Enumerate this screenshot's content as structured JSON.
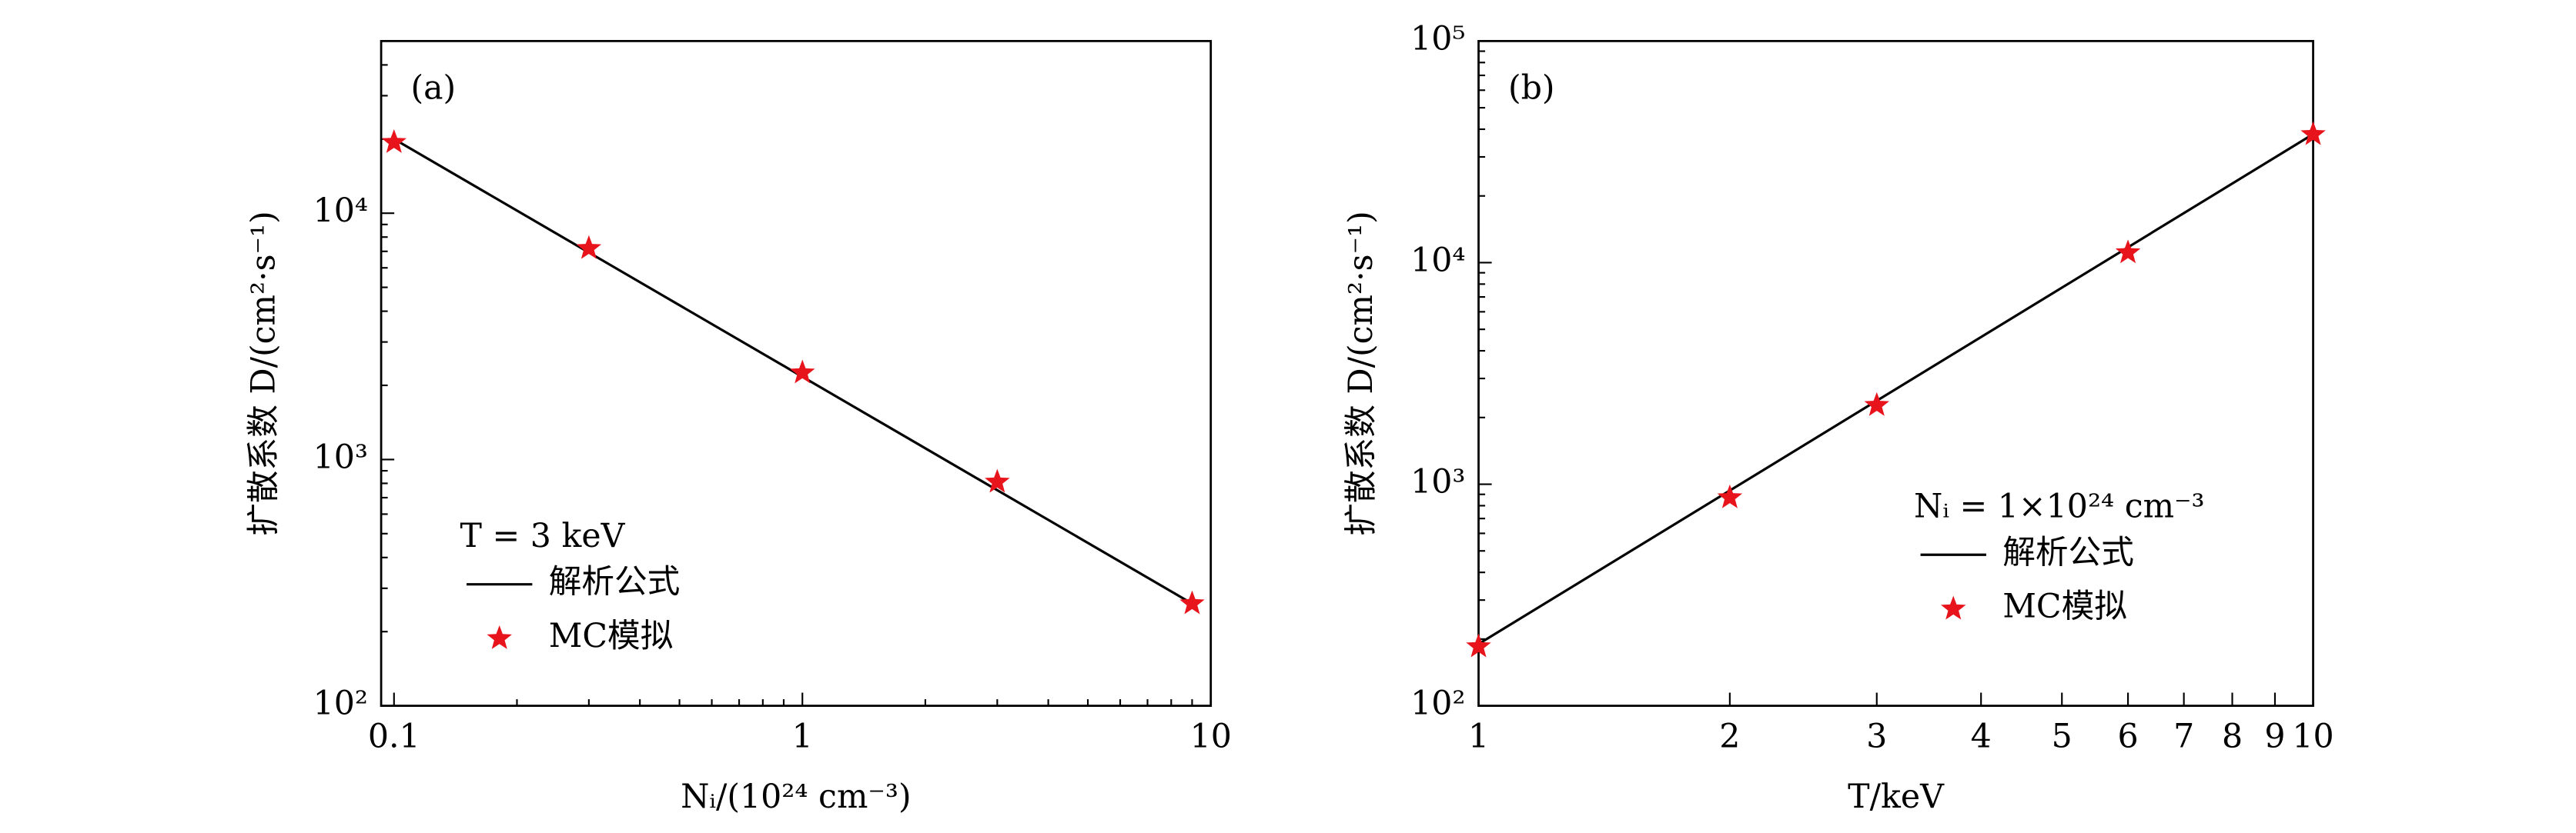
{
  "chart_data": [
    {
      "type": "line",
      "panel_label": "(a)",
      "annotation": "T = 3 keV",
      "x_label": "Nᵢ/(10²⁴ cm⁻³)",
      "y_label": "扩散系数 D/(cm²·s⁻¹)",
      "xscale": "log",
      "yscale": "log",
      "legend": "lower left",
      "xlim": [
        0.093,
        10
      ],
      "ylim": [
        100,
        50000
      ],
      "xticks": [
        0.1,
        1,
        10
      ],
      "xminorticks": [
        0.2,
        0.3,
        0.4,
        0.5,
        0.6,
        0.7,
        0.8,
        0.9,
        2,
        3,
        4,
        5,
        6,
        7,
        8,
        9
      ],
      "yticks": [
        {
          "value": 100,
          "label": "10²"
        },
        {
          "value": 1000,
          "label": "10³"
        },
        {
          "value": 10000,
          "label": "10⁴"
        }
      ],
      "yminorticks": [
        200,
        300,
        400,
        500,
        600,
        700,
        800,
        900,
        2000,
        3000,
        4000,
        5000,
        6000,
        7000,
        8000,
        9000,
        20000,
        30000,
        40000
      ],
      "series": [
        {
          "name": "解析公式",
          "style": "line",
          "color": "#000000",
          "x": [
            0.1,
            9
          ],
          "values": [
            20000,
            260
          ]
        },
        {
          "name": "MC模拟",
          "style": "star",
          "color": "#e8141c",
          "x": [
            0.1,
            0.3,
            1,
            3,
            9
          ],
          "values": [
            19400,
            7200,
            2250,
            810,
            260
          ]
        }
      ]
    },
    {
      "type": "line",
      "panel_label": "(b)",
      "annotation": "Nᵢ = 1×10²⁴ cm⁻³",
      "x_label": "T/keV",
      "y_label": "扩散系数 D/(cm²·s⁻¹)",
      "xscale": "log",
      "yscale": "log",
      "legend": "lower right",
      "xlim": [
        1,
        10
      ],
      "ylim": [
        100,
        100000
      ],
      "xticks": [
        1,
        2,
        3,
        4,
        5,
        6,
        7,
        8,
        9,
        10
      ],
      "xminorticks": [],
      "yticks": [
        {
          "value": 100,
          "label": "10²"
        },
        {
          "value": 1000,
          "label": "10³"
        },
        {
          "value": 10000,
          "label": "10⁴"
        },
        {
          "value": 100000,
          "label": "10⁵"
        }
      ],
      "yminorticks": [
        200,
        300,
        400,
        500,
        600,
        700,
        800,
        900,
        2000,
        3000,
        4000,
        5000,
        6000,
        7000,
        8000,
        9000,
        20000,
        30000,
        40000,
        50000,
        60000,
        70000,
        80000,
        90000
      ],
      "series": [
        {
          "name": "解析公式",
          "style": "line",
          "color": "#000000",
          "x": [
            1,
            10
          ],
          "values": [
            190,
            38000
          ]
        },
        {
          "name": "MC模拟",
          "style": "star",
          "color": "#e8141c",
          "x": [
            1,
            2,
            3,
            6,
            10
          ],
          "values": [
            185,
            870,
            2270,
            11100,
            37900
          ]
        }
      ]
    }
  ]
}
